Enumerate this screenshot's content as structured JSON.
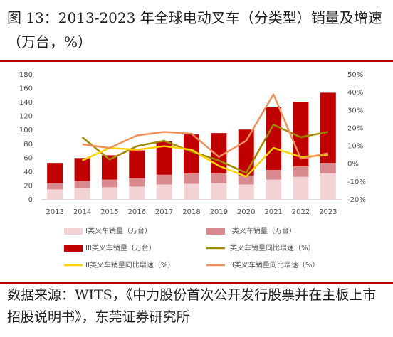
{
  "chart_data": {
    "type": "bar",
    "title": "图 13：2013-2023 年全球电动叉车（分类型）销量及增速（万台，%）",
    "source": "数据来源：WITS，《中力股份首次公开发行股票并在主板上市招股说明书》，东莞证券研究所",
    "categories": [
      "2013",
      "2014",
      "2015",
      "2016",
      "2017",
      "2018",
      "2019",
      "2020",
      "2021",
      "2022",
      "2023"
    ],
    "ylim": [
      0,
      180
    ],
    "yticks": [
      0,
      20,
      40,
      60,
      80,
      100,
      120,
      140,
      160,
      180
    ],
    "y2lim": [
      -20,
      50
    ],
    "y2ticks": [
      {
        "value": -20,
        "label": "-20%"
      },
      {
        "value": -10,
        "label": "-10%"
      },
      {
        "value": 0,
        "label": "0%"
      },
      {
        "value": 10,
        "label": "10%"
      },
      {
        "value": 20,
        "label": "20%"
      },
      {
        "value": 30,
        "label": "30%"
      },
      {
        "value": 40,
        "label": "40%"
      },
      {
        "value": 50,
        "label": "50%"
      }
    ],
    "stacked": true,
    "series": [
      {
        "name": "I类叉车销量（万台）",
        "type": "bar",
        "color": "#f3d3d5",
        "values": [
          15,
          17,
          18,
          19,
          22,
          23,
          24,
          22,
          29,
          33,
          38
        ]
      },
      {
        "name": "II类叉车销量（万台）",
        "type": "bar",
        "color": "#d98a8e",
        "values": [
          9,
          10,
          11,
          12,
          14,
          15,
          14,
          13,
          14,
          15,
          15
        ]
      },
      {
        "name": "III类叉车销量（万台）",
        "type": "bar",
        "color": "#c00000",
        "values": [
          29,
          33,
          35,
          40,
          48,
          56,
          58,
          66,
          90,
          93,
          101
        ]
      },
      {
        "name": "I类叉车销量同比增速（%）",
        "type": "line",
        "axis": "y2",
        "color": "#a08a00",
        "values": [
          null,
          15,
          2.5,
          10,
          13,
          7,
          2,
          -5,
          22,
          15,
          18
        ]
      },
      {
        "name": "II类叉车销量同比增速（%）",
        "type": "line",
        "axis": "y2",
        "color": "#ffd200",
        "values": [
          null,
          2,
          9,
          8,
          10,
          8,
          -1,
          -7,
          9,
          4,
          5
        ]
      },
      {
        "name": "III类叉车销量同比增速（%）",
        "type": "line",
        "axis": "y2",
        "color": "#f0905a",
        "values": [
          null,
          11,
          9,
          16,
          18,
          17,
          4,
          13,
          39,
          3,
          6
        ]
      }
    ]
  }
}
